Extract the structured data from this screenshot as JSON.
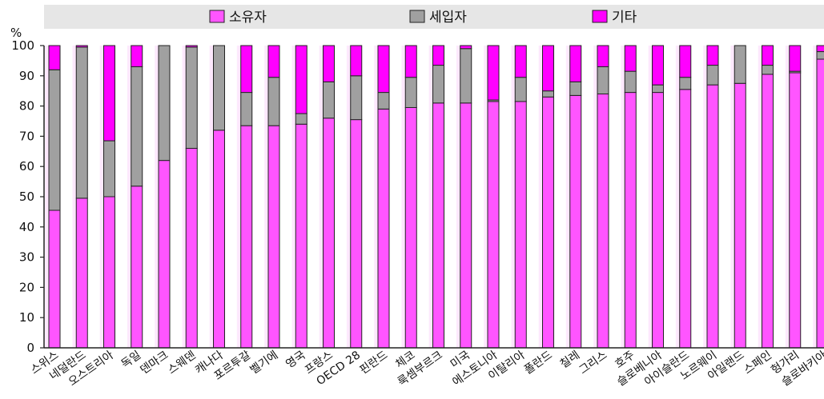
{
  "chart_data": {
    "type": "bar",
    "stacked": true,
    "ylabel": "%",
    "ylim": [
      0,
      100
    ],
    "yticks": [
      0,
      10,
      20,
      30,
      40,
      50,
      60,
      70,
      80,
      90,
      100
    ],
    "grid": false,
    "legend_position": "top",
    "categories": [
      "스위스",
      "네덜란드",
      "오스트리아",
      "독일",
      "덴마크",
      "스웨덴",
      "캐나다",
      "포르투갈",
      "벨기에",
      "영국",
      "프랑스",
      "OECD 28",
      "핀란드",
      "체코",
      "룩셈부르크",
      "미국",
      "에스토니아",
      "이탈리아",
      "폴란드",
      "칠레",
      "그리스",
      "호주",
      "슬로베니아",
      "아이슬란드",
      "노르웨이",
      "아일랜드",
      "스페인",
      "헝가리",
      "슬로바키아"
    ],
    "series": [
      {
        "name": "소유자",
        "color": "#ff55ff",
        "values": [
          45.5,
          49.5,
          50,
          53.5,
          62,
          66,
          72,
          73.5,
          73.5,
          74,
          76,
          75.5,
          79,
          79.5,
          81,
          81,
          81.5,
          81.5,
          83,
          83.5,
          84,
          84.5,
          84.5,
          85.5,
          87,
          87.5,
          90.5,
          91,
          95.5
        ]
      },
      {
        "name": "세입자",
        "color": "#a0a0a0",
        "values": [
          46.5,
          50,
          18.5,
          39.5,
          38,
          33.5,
          28,
          11,
          16,
          3.5,
          12,
          14.5,
          5.5,
          10,
          12.5,
          18,
          0.5,
          8,
          2,
          4.5,
          9,
          7,
          2.5,
          4,
          6.5,
          12.5,
          3,
          0.5,
          2.5
        ]
      },
      {
        "name": "기타",
        "color": "#ff00ff",
        "values": [
          8,
          0.5,
          31.5,
          7,
          0,
          0.5,
          0,
          15.5,
          10.5,
          22.5,
          12,
          10,
          15.5,
          10.5,
          6.5,
          1,
          18,
          10.5,
          15,
          12,
          7,
          8.5,
          13,
          10.5,
          6.5,
          0,
          6.5,
          8.5,
          2
        ]
      }
    ]
  }
}
